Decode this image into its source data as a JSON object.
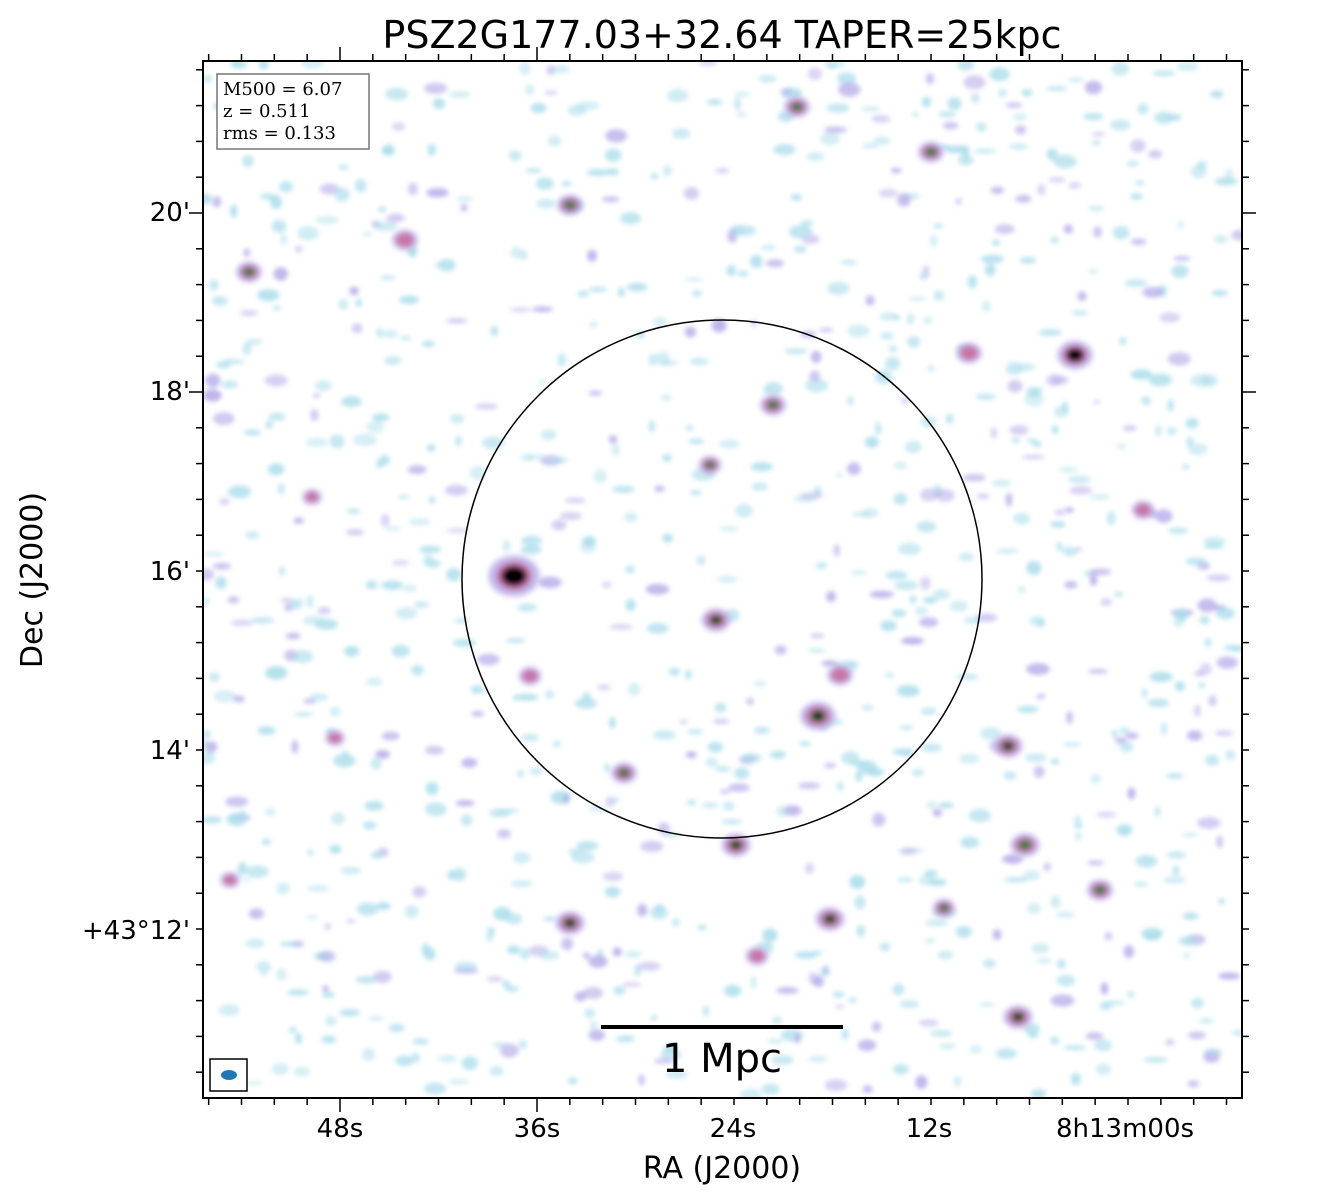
{
  "title": "PSZ2G177.03+32.64 TAPER=25kpc",
  "axes": {
    "xlabel": "RA (J2000)",
    "ylabel": "Dec (J2000)",
    "xticks": [
      "48s",
      "36s",
      "24s",
      "12s",
      "8h13m00s"
    ],
    "yticks": [
      "20'",
      "18'",
      "16'",
      "14'",
      "+43°12'"
    ]
  },
  "info_box": {
    "m500": "M500 = 6.07",
    "z": "z = 0.511",
    "rms": "rms = 0.133"
  },
  "scale_bar": {
    "label": "1 Mpc"
  },
  "colors": {
    "beam": "#1f77b4",
    "faint_emission": "#a8dcea",
    "mid_emission": "#b4a8e8",
    "bright_emission": "#c86a9a",
    "peak_emission": "#1e7a3a",
    "core_emission": "#000000"
  }
}
